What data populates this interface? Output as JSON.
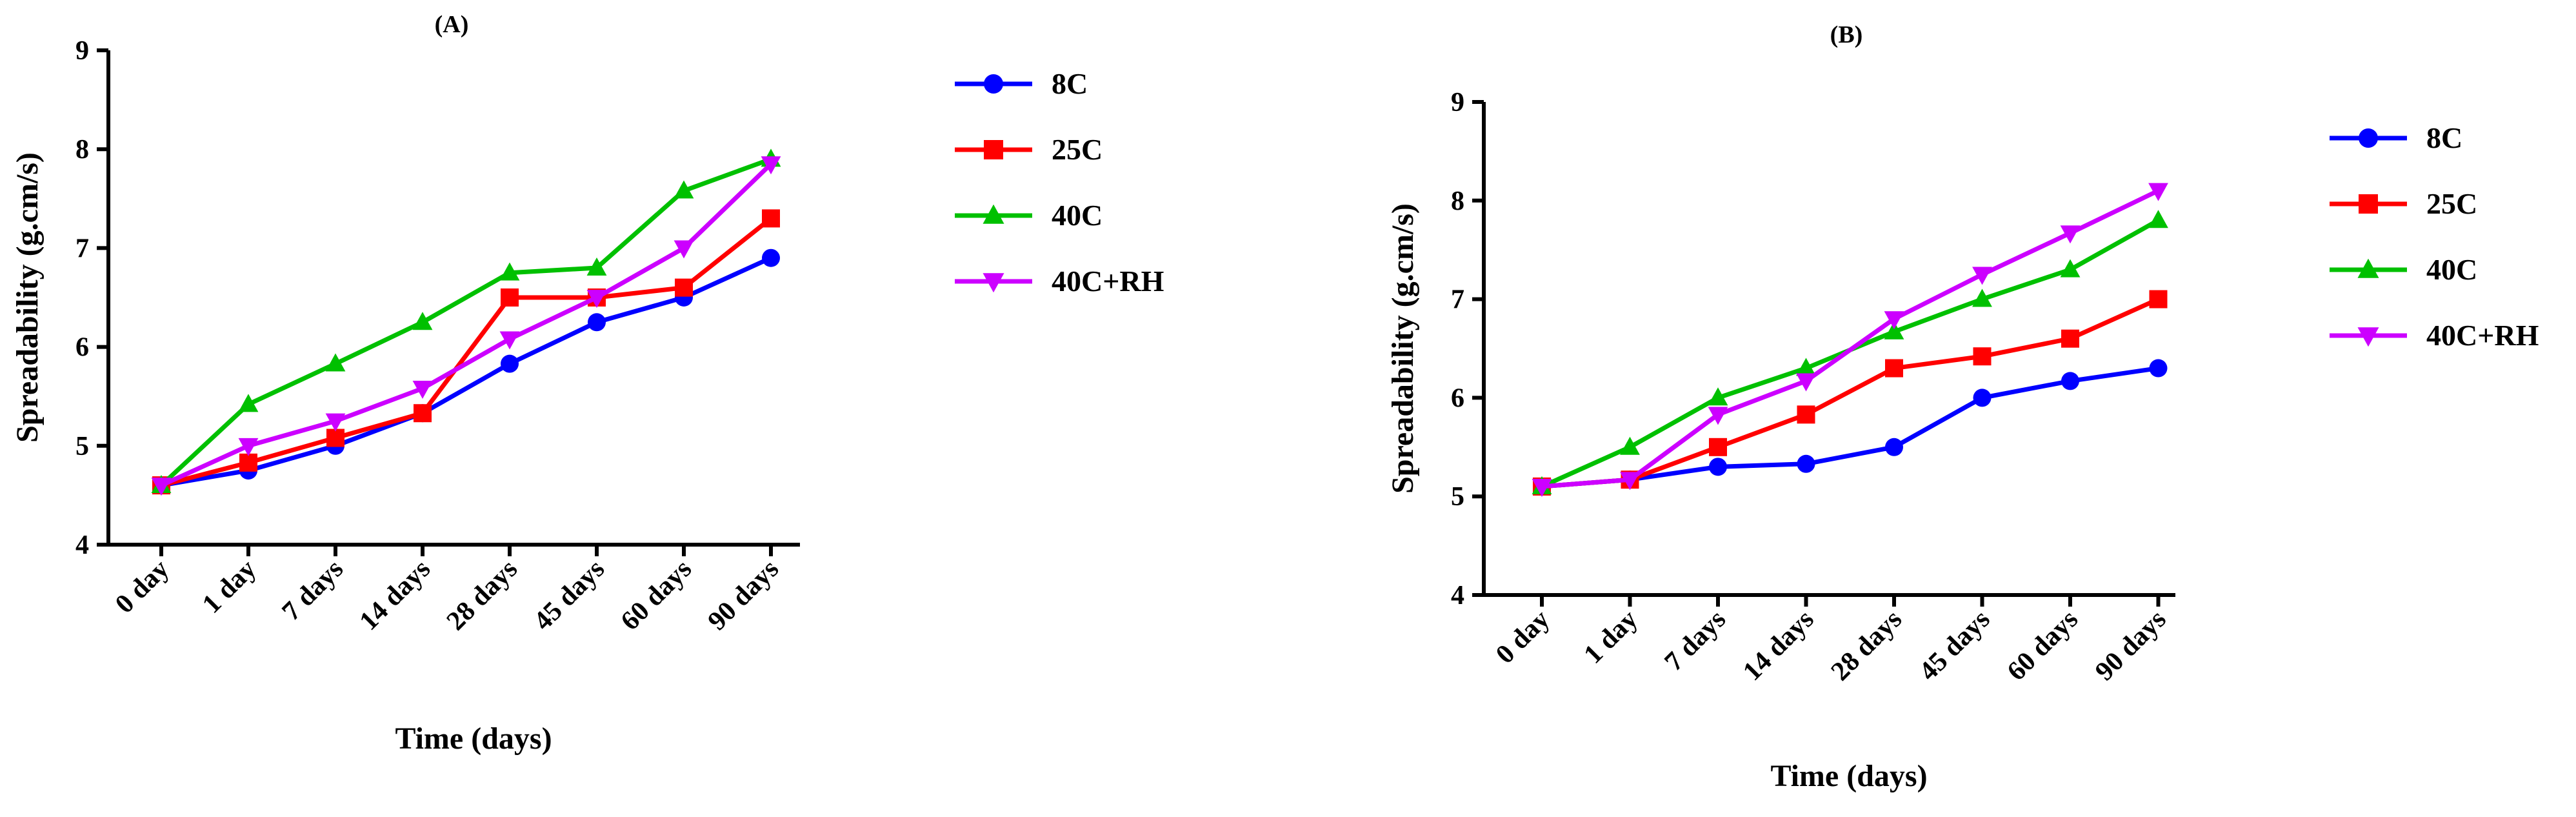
{
  "chart_data": [
    {
      "type": "line",
      "title": "(A)",
      "xlabel": "Time (days)",
      "ylabel": "Spreadability (g.cm/s)",
      "categories": [
        "0 day",
        "1 day",
        "7 days",
        "14 days",
        "28 days",
        "45 days",
        "60 days",
        "90 days"
      ],
      "ylim": [
        4,
        9
      ],
      "yticks": [
        "4",
        "5",
        "6",
        "7",
        "8",
        "9"
      ],
      "grid": false,
      "legend_position": "right",
      "series": [
        {
          "name": "8C",
          "marker": "circle",
          "color": "#0000FF",
          "values": [
            4.6,
            4.75,
            5.0,
            5.33,
            5.83,
            6.25,
            6.5,
            6.9
          ]
        },
        {
          "name": "25C",
          "marker": "square",
          "color": "#FF0000",
          "values": [
            4.6,
            4.83,
            5.08,
            5.33,
            6.5,
            6.5,
            6.6,
            7.3
          ]
        },
        {
          "name": "40C",
          "marker": "triangle-up",
          "color": "#00C000",
          "values": [
            4.6,
            5.42,
            5.83,
            6.25,
            6.75,
            6.8,
            7.58,
            7.9
          ]
        },
        {
          "name": "40C+RH",
          "marker": "triangle-down",
          "color": "#CC00FF",
          "values": [
            4.6,
            5.0,
            5.25,
            5.58,
            6.08,
            6.5,
            7.0,
            7.85
          ]
        }
      ]
    },
    {
      "type": "line",
      "title": "(B)",
      "xlabel": "Time (days)",
      "ylabel": "Spreadability (g.cm/s)",
      "categories": [
        "0 day",
        "1 day",
        "7 days",
        "14 days",
        "28 days",
        "45 days",
        "60 days",
        "90 days"
      ],
      "ylim": [
        4,
        9
      ],
      "yticks": [
        "4",
        "5",
        "6",
        "7",
        "8",
        "9"
      ],
      "grid": false,
      "legend_position": "right",
      "series": [
        {
          "name": "8C",
          "marker": "circle",
          "color": "#0000FF",
          "values": [
            5.1,
            5.17,
            5.3,
            5.33,
            5.5,
            6.0,
            6.17,
            6.3
          ]
        },
        {
          "name": "25C",
          "marker": "square",
          "color": "#FF0000",
          "values": [
            5.1,
            5.17,
            5.5,
            5.83,
            6.3,
            6.42,
            6.6,
            7.0
          ]
        },
        {
          "name": "40C",
          "marker": "triangle-up",
          "color": "#00C000",
          "values": [
            5.1,
            5.5,
            6.0,
            6.3,
            6.67,
            7.0,
            7.3,
            7.8
          ]
        },
        {
          "name": "40C+RH",
          "marker": "triangle-down",
          "color": "#CC00FF",
          "values": [
            5.1,
            5.17,
            5.83,
            6.17,
            6.8,
            7.25,
            7.67,
            8.1
          ]
        }
      ]
    }
  ]
}
